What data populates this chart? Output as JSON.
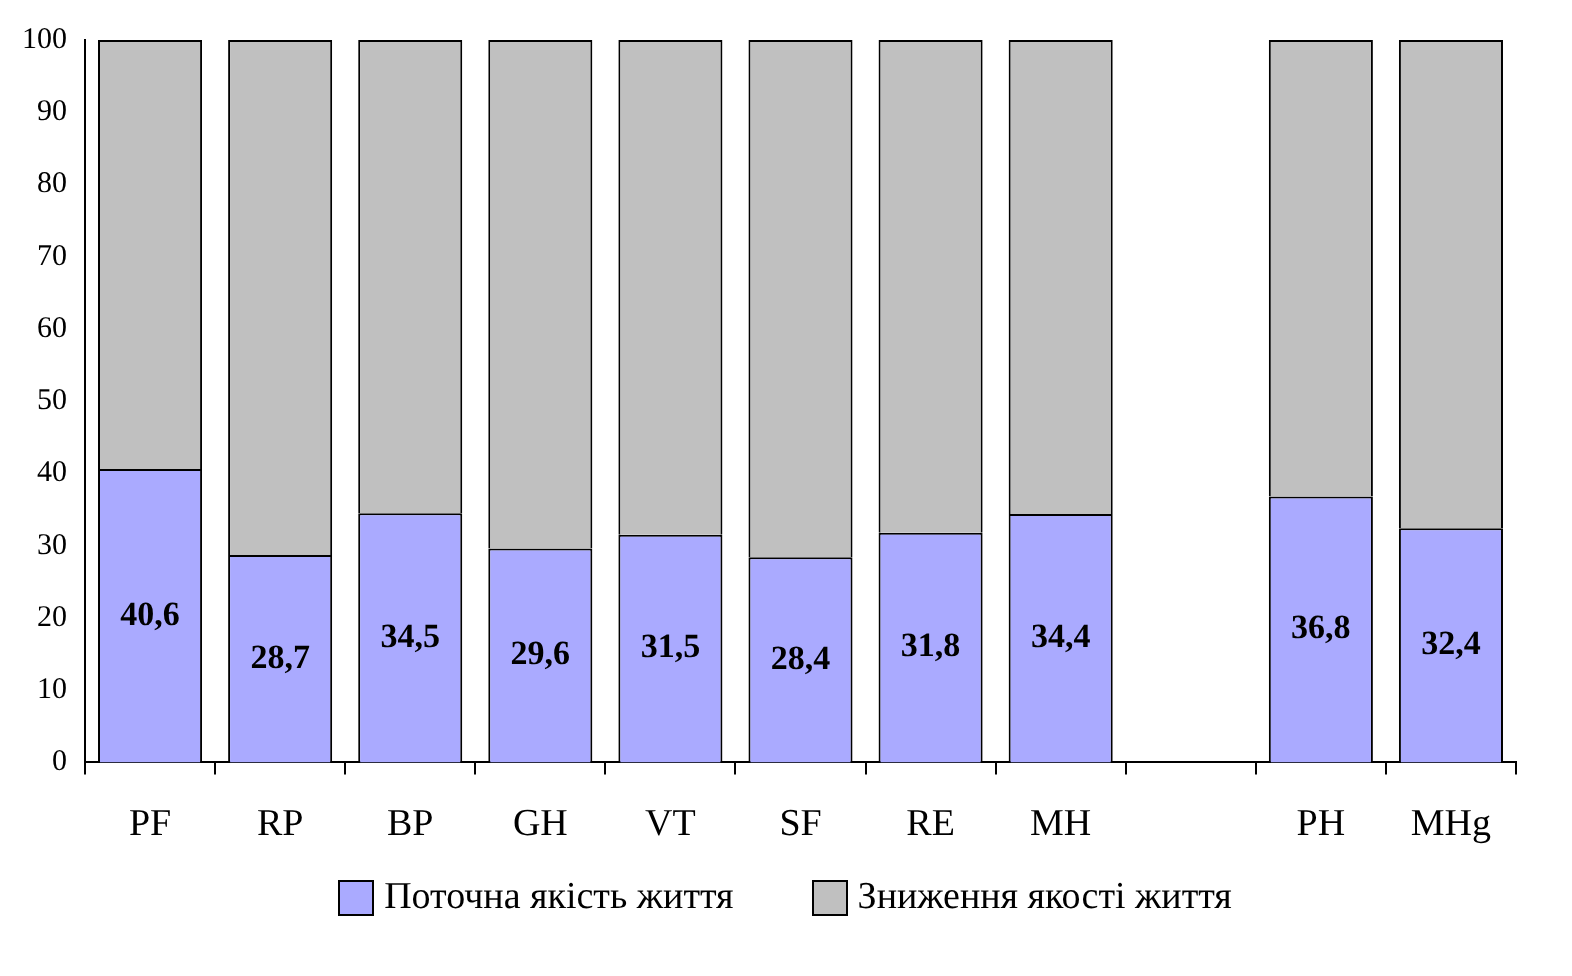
{
  "chart_data": {
    "type": "bar",
    "stacked": true,
    "categories": [
      "PF",
      "RP",
      "BP",
      "GH",
      "VT",
      "SF",
      "RE",
      "MH",
      null,
      "PH",
      "MHg"
    ],
    "series": [
      {
        "name": "Поточна якість життя",
        "color": "#aaaaff",
        "values": [
          40.6,
          28.7,
          34.5,
          29.6,
          31.5,
          28.4,
          31.8,
          34.4,
          null,
          36.8,
          32.4
        ],
        "value_labels": [
          "40,6",
          "28,7",
          "34,5",
          "29,6",
          "31,5",
          "28,4",
          "31,8",
          "34,4",
          null,
          "36,8",
          "32,4"
        ]
      },
      {
        "name": "Зниження якості життя",
        "color": "#c0c0c0",
        "values": [
          59.4,
          71.3,
          65.5,
          70.4,
          68.5,
          71.6,
          68.2,
          65.6,
          null,
          63.2,
          67.6
        ]
      }
    ],
    "ylim": [
      0,
      100
    ],
    "yticks": [
      0,
      10,
      20,
      30,
      40,
      50,
      60,
      70,
      80,
      90,
      100
    ],
    "grid": false,
    "legend": "bottom"
  }
}
